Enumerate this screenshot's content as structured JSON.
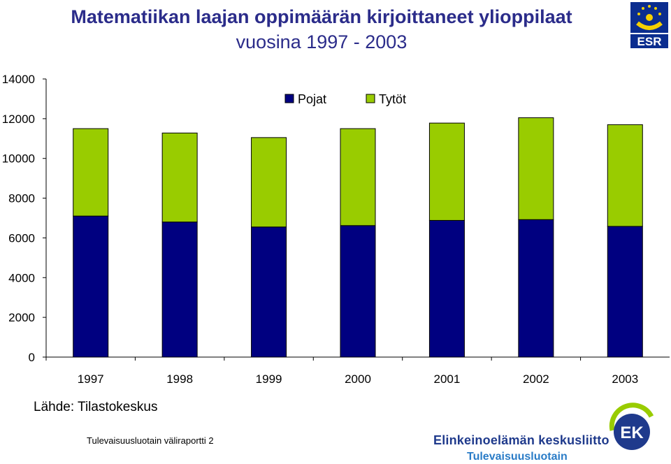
{
  "title_line1": "Matematiikan laajan oppimäärän kirjoittaneet ylioppilaat",
  "title_line2": "vuosina 1997 - 2003",
  "source": "Lähde: Tilastokeskus",
  "footer_left": "Tulevaisuusluotain väliraportti 2",
  "org_name": "Elinkeinoelämän keskusliitto",
  "org_sub": "Tulevaisuusluotain",
  "esr_logo": {
    "text": "ESR"
  },
  "ek_logo": {
    "text": "EK"
  },
  "colors": {
    "title": "#2b2c8a",
    "pojat": "#000080",
    "tytot": "#99cc00",
    "org": "#1f3a8c",
    "org_sub": "#2a7cc7"
  },
  "chart_data": {
    "type": "bar",
    "stacked": true,
    "categories": [
      "1997",
      "1998",
      "1999",
      "2000",
      "2001",
      "2002",
      "2003"
    ],
    "series": [
      {
        "name": "Pojat",
        "color": "#000080",
        "values": [
          7100,
          6800,
          6550,
          6620,
          6880,
          6920,
          6580
        ]
      },
      {
        "name": "Tytöt",
        "color": "#99cc00",
        "values": [
          4400,
          4480,
          4500,
          4880,
          4900,
          5130,
          5120
        ]
      }
    ],
    "ylim": [
      0,
      14000
    ],
    "yticks": [
      "0",
      "2000",
      "4000",
      "6000",
      "8000",
      "10000",
      "12000",
      "14000"
    ],
    "legend_position": "top-center",
    "grid": false
  }
}
